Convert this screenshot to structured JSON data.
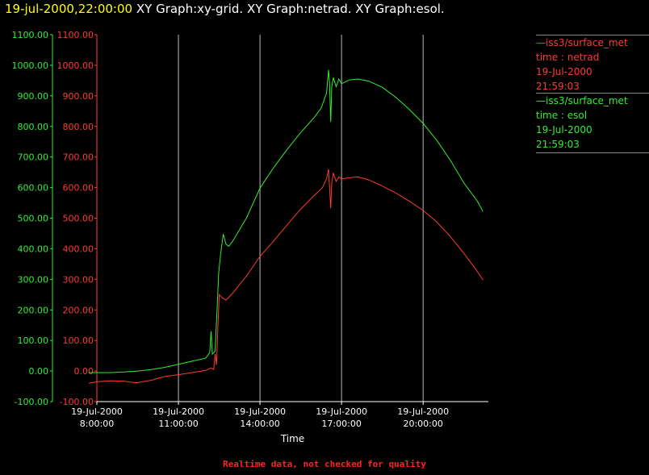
{
  "header": {
    "timestamp": "19-jul-2000,22:00:00",
    "graphs": "XY Graph:xy-grid.  XY Graph:netrad.  XY Graph:esol."
  },
  "legend": [
    {
      "source": "iss3/surface_met",
      "var": "time : netrad",
      "date": "19-Jul-2000",
      "time": "21:59:03",
      "color": "#ff3b30"
    },
    {
      "source": "iss3/surface_met",
      "var": "time : esol",
      "date": "19-Jul-2000",
      "time": "21:59:03",
      "color": "#33ee33"
    }
  ],
  "footer_note": "Realtime data, not checked for quality",
  "chart_data": {
    "type": "line",
    "xlabel": "Time",
    "x_ticks": [
      {
        "value": 8,
        "date": "19-Jul-2000",
        "time": "8:00:00"
      },
      {
        "value": 11,
        "date": "19-Jul-2000",
        "time": "11:00:00"
      },
      {
        "value": 14,
        "date": "19-Jul-2000",
        "time": "14:00:00"
      },
      {
        "value": 17,
        "date": "19-Jul-2000",
        "time": "17:00:00"
      },
      {
        "value": 20,
        "date": "19-Jul-2000",
        "time": "20:00:00"
      }
    ],
    "xlim": [
      8,
      22.4
    ],
    "ylim": [
      -100,
      1100
    ],
    "y_ticks": [
      "-100.00",
      "0.00",
      "100.00",
      "200.00",
      "300.00",
      "400.00",
      "500.00",
      "600.00",
      "700.00",
      "800.00",
      "900.00",
      "1000.00",
      "1100.00"
    ],
    "y_tick_values": [
      -100,
      0,
      100,
      200,
      300,
      400,
      500,
      600,
      700,
      800,
      900,
      1000,
      1100
    ],
    "vertical_gridlines": [
      11,
      14,
      17,
      20
    ],
    "series": [
      {
        "name": "esol",
        "color": "#33ee33",
        "points": [
          [
            7.7,
            -5
          ],
          [
            8.5,
            -5
          ],
          [
            9.0,
            -3
          ],
          [
            9.5,
            0
          ],
          [
            10.0,
            5
          ],
          [
            10.5,
            12
          ],
          [
            11.0,
            22
          ],
          [
            11.5,
            32
          ],
          [
            12.0,
            42
          ],
          [
            12.15,
            60
          ],
          [
            12.2,
            130
          ],
          [
            12.25,
            55
          ],
          [
            12.35,
            65
          ],
          [
            12.42,
            200
          ],
          [
            12.48,
            320
          ],
          [
            12.55,
            380
          ],
          [
            12.65,
            448
          ],
          [
            12.75,
            415
          ],
          [
            12.85,
            408
          ],
          [
            13.0,
            425
          ],
          [
            13.5,
            500
          ],
          [
            14.0,
            598
          ],
          [
            14.5,
            665
          ],
          [
            15.0,
            725
          ],
          [
            15.5,
            780
          ],
          [
            16.0,
            830
          ],
          [
            16.25,
            860
          ],
          [
            16.45,
            910
          ],
          [
            16.52,
            985
          ],
          [
            16.56,
            940
          ],
          [
            16.6,
            815
          ],
          [
            16.64,
            930
          ],
          [
            16.7,
            960
          ],
          [
            16.8,
            930
          ],
          [
            16.9,
            955
          ],
          [
            17.0,
            940
          ],
          [
            17.3,
            952
          ],
          [
            17.6,
            955
          ],
          [
            18.0,
            948
          ],
          [
            18.5,
            928
          ],
          [
            19.0,
            895
          ],
          [
            19.5,
            855
          ],
          [
            20.0,
            810
          ],
          [
            20.5,
            755
          ],
          [
            21.0,
            690
          ],
          [
            21.5,
            615
          ],
          [
            22.0,
            555
          ],
          [
            22.2,
            522
          ]
        ]
      },
      {
        "name": "netrad",
        "color": "#ff3b30",
        "points": [
          [
            7.7,
            -40
          ],
          [
            8.0,
            -35
          ],
          [
            8.5,
            -32
          ],
          [
            9.0,
            -33
          ],
          [
            9.3,
            -37
          ],
          [
            9.5,
            -38
          ],
          [
            10.0,
            -30
          ],
          [
            10.5,
            -18
          ],
          [
            11.0,
            -12
          ],
          [
            11.5,
            -5
          ],
          [
            12.0,
            2
          ],
          [
            12.2,
            10
          ],
          [
            12.3,
            5
          ],
          [
            12.35,
            55
          ],
          [
            12.4,
            20
          ],
          [
            12.45,
            140
          ],
          [
            12.5,
            250
          ],
          [
            12.6,
            240
          ],
          [
            12.75,
            232
          ],
          [
            13.0,
            255
          ],
          [
            13.5,
            310
          ],
          [
            14.0,
            375
          ],
          [
            14.5,
            425
          ],
          [
            15.0,
            478
          ],
          [
            15.5,
            530
          ],
          [
            16.0,
            575
          ],
          [
            16.3,
            600
          ],
          [
            16.45,
            630
          ],
          [
            16.52,
            660
          ],
          [
            16.56,
            600
          ],
          [
            16.6,
            532
          ],
          [
            16.64,
            615
          ],
          [
            16.7,
            648
          ],
          [
            16.8,
            620
          ],
          [
            16.9,
            635
          ],
          [
            17.0,
            628
          ],
          [
            17.3,
            632
          ],
          [
            17.6,
            635
          ],
          [
            18.0,
            625
          ],
          [
            18.5,
            605
          ],
          [
            19.0,
            582
          ],
          [
            19.5,
            555
          ],
          [
            20.0,
            525
          ],
          [
            20.5,
            488
          ],
          [
            21.0,
            440
          ],
          [
            21.5,
            385
          ],
          [
            22.0,
            325
          ],
          [
            22.2,
            298
          ]
        ]
      }
    ]
  }
}
